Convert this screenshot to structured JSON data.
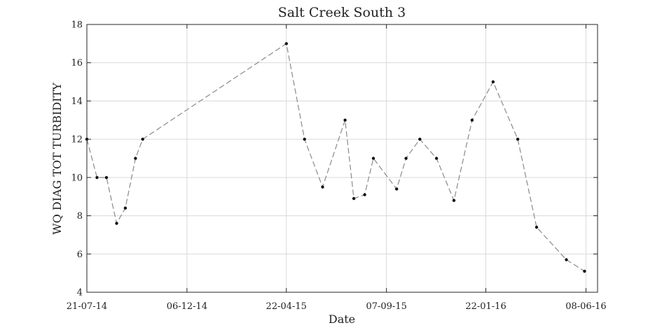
{
  "chart_data": {
    "type": "line",
    "title": "Salt Creek South 3",
    "xlabel": "Date",
    "ylabel": "WQ DIAG TOT TURBIDITY",
    "ylim": [
      4,
      18
    ],
    "yticks": [
      4,
      6,
      8,
      10,
      12,
      14,
      16,
      18
    ],
    "xlim": [
      "2014-07-21",
      "2016-06-24"
    ],
    "xticks": [
      {
        "date": "2014-07-21",
        "label": "21-07-14"
      },
      {
        "date": "2014-12-06",
        "label": "06-12-14"
      },
      {
        "date": "2015-04-22",
        "label": "22-04-15"
      },
      {
        "date": "2015-09-07",
        "label": "07-09-15"
      },
      {
        "date": "2016-01-22",
        "label": "22-01-16"
      },
      {
        "date": "2016-06-08",
        "label": "08-06-16"
      }
    ],
    "grid": true,
    "series": [
      {
        "line_style": "dashed",
        "marker": "dot",
        "color": "#8a8a8a",
        "points": [
          {
            "x": "2014-07-21",
            "y": 12.0
          },
          {
            "x": "2014-08-04",
            "y": 10.0
          },
          {
            "x": "2014-08-17",
            "y": 10.0
          },
          {
            "x": "2014-08-31",
            "y": 7.6
          },
          {
            "x": "2014-09-12",
            "y": 8.4
          },
          {
            "x": "2014-09-26",
            "y": 11.0
          },
          {
            "x": "2014-10-06",
            "y": 12.0
          },
          {
            "x": "2015-04-22",
            "y": 17.0
          },
          {
            "x": "2015-05-17",
            "y": 12.0
          },
          {
            "x": "2015-06-11",
            "y": 9.5
          },
          {
            "x": "2015-07-12",
            "y": 13.0
          },
          {
            "x": "2015-07-24",
            "y": 8.9
          },
          {
            "x": "2015-08-08",
            "y": 9.1
          },
          {
            "x": "2015-08-20",
            "y": 11.0
          },
          {
            "x": "2015-09-21",
            "y": 9.4
          },
          {
            "x": "2015-10-04",
            "y": 11.0
          },
          {
            "x": "2015-10-23",
            "y": 12.0
          },
          {
            "x": "2015-11-15",
            "y": 11.0
          },
          {
            "x": "2015-12-09",
            "y": 8.8
          },
          {
            "x": "2016-01-03",
            "y": 13.0
          },
          {
            "x": "2016-02-01",
            "y": 15.0
          },
          {
            "x": "2016-03-06",
            "y": 12.0
          },
          {
            "x": "2016-04-01",
            "y": 7.4
          },
          {
            "x": "2016-05-12",
            "y": 5.7
          },
          {
            "x": "2016-06-06",
            "y": 5.1
          }
        ]
      }
    ]
  }
}
